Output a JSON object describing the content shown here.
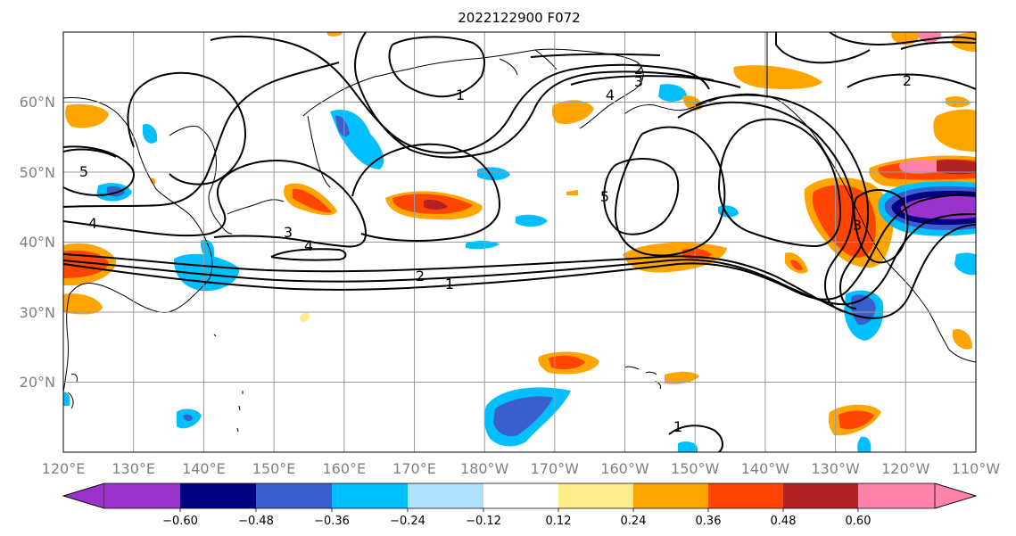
{
  "title": "2022122900 F072",
  "map": {
    "projection": "PlateCarree",
    "lon_range": [
      "120°E",
      "110°W"
    ],
    "lat_range": [
      10,
      70
    ],
    "gridlines": true,
    "x_ticks": [
      "120°E",
      "130°E",
      "140°E",
      "150°E",
      "160°E",
      "170°E",
      "180°W",
      "170°W",
      "160°W",
      "150°W",
      "140°W",
      "130°W",
      "120°W",
      "110°W"
    ],
    "y_ticks": [
      "20°N",
      "30°N",
      "40°N",
      "50°N",
      "60°N"
    ],
    "contour_labels": [
      "1",
      "2",
      "2",
      "3",
      "3",
      "4",
      "4",
      "4",
      "5",
      "5",
      "1",
      "2",
      "3",
      "1"
    ]
  },
  "colorbar": {
    "extend": "both",
    "tick_labels": [
      "−0.60",
      "−0.48",
      "−0.36",
      "−0.24",
      "−0.12",
      "0.12",
      "0.24",
      "0.36",
      "0.48",
      "0.60"
    ],
    "colors": [
      "#9933cc",
      "#000080",
      "#3a5fcd",
      "#00bfff",
      "#b0e2ff",
      "#ffffff",
      "#ffec8b",
      "#ffa500",
      "#ff4500",
      "#b22222",
      "#ff82ab"
    ]
  },
  "colors": {
    "positive_light": "#ffec8b",
    "positive_mid": "#ffa500",
    "positive_strong": "#ff4500",
    "positive_max": "#b22222",
    "negative_light": "#b0e2ff",
    "negative_mid": "#00bfff",
    "negative_strong": "#3a5fcd",
    "negative_max": "#9933cc"
  }
}
